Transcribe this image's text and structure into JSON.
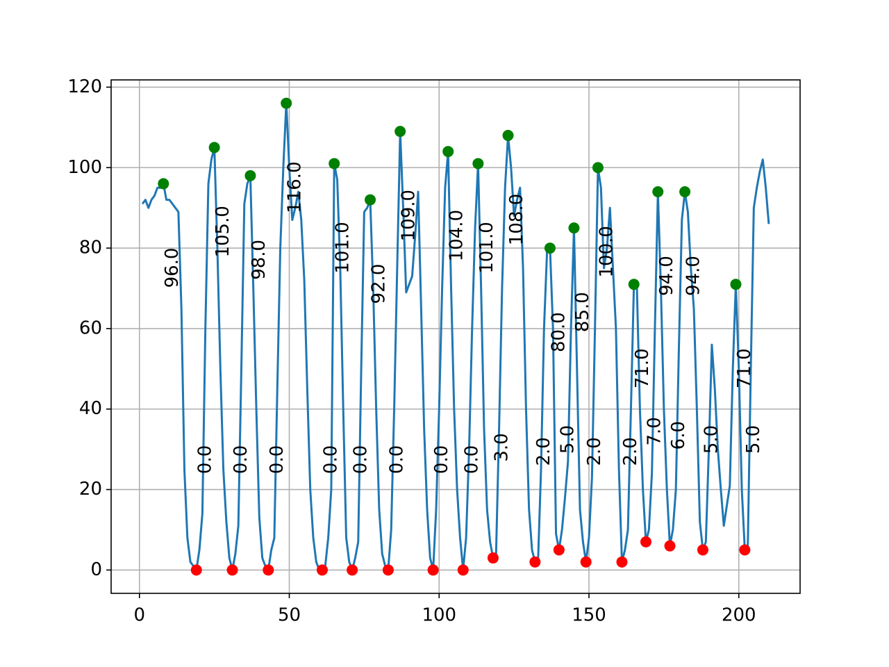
{
  "chart_data": {
    "type": "line",
    "xlim": [
      -9.45,
      220.45
    ],
    "ylim": [
      -5.8,
      121.8
    ],
    "xticks": [
      0,
      50,
      100,
      150,
      200
    ],
    "yticks": [
      0,
      20,
      40,
      60,
      80,
      100,
      120
    ],
    "grid": true,
    "series": [
      {
        "type": "line",
        "color": "#1f77b4",
        "x": [
          1,
          2,
          3,
          4,
          5,
          6,
          7,
          8,
          9,
          10,
          11,
          12,
          13,
          14,
          15,
          16,
          17,
          18,
          19,
          20,
          21,
          22,
          23,
          24,
          25,
          26,
          27,
          28,
          29,
          30,
          31,
          32,
          33,
          34,
          35,
          36,
          37,
          38,
          39,
          40,
          41,
          42,
          43,
          44,
          45,
          46,
          47,
          48,
          49,
          50,
          51,
          52,
          53,
          54,
          55,
          56,
          57,
          58,
          59,
          60,
          61,
          62,
          63,
          64,
          65,
          66,
          67,
          68,
          69,
          70,
          71,
          72,
          73,
          74,
          75,
          76,
          77,
          78,
          79,
          80,
          81,
          82,
          83,
          84,
          85,
          86,
          87,
          88,
          89,
          90,
          91,
          92,
          93,
          94,
          95,
          96,
          97,
          98,
          99,
          100,
          101,
          102,
          103,
          104,
          105,
          106,
          107,
          108,
          109,
          110,
          111,
          112,
          113,
          114,
          115,
          116,
          117,
          118,
          119,
          120,
          121,
          122,
          123,
          124,
          125,
          126,
          127,
          128,
          129,
          130,
          131,
          132,
          133,
          134,
          135,
          136,
          137,
          138,
          139,
          140,
          141,
          142,
          143,
          144,
          145,
          146,
          147,
          148,
          149,
          150,
          151,
          152,
          153,
          154,
          155,
          156,
          157,
          158,
          159,
          160,
          161,
          162,
          163,
          164,
          165,
          166,
          167,
          168,
          169,
          170,
          171,
          172,
          173,
          174,
          175,
          176,
          177,
          178,
          179,
          180,
          181,
          182,
          183,
          184,
          185,
          186,
          187,
          188,
          189,
          190,
          191,
          192,
          193,
          194,
          195,
          196,
          197,
          198,
          199,
          200,
          201,
          202,
          203,
          204,
          205,
          206,
          207,
          208,
          209,
          210
        ],
        "values": [
          91,
          92,
          90,
          92,
          93,
          95,
          95,
          96,
          92,
          92,
          91,
          90,
          89,
          65,
          25,
          8,
          2,
          1,
          0,
          5,
          14,
          60,
          96,
          102,
          105,
          80,
          50,
          25,
          12,
          3,
          0,
          4,
          11,
          50,
          91,
          96,
          98,
          70,
          40,
          13,
          3,
          1,
          0,
          5,
          8,
          45,
          80,
          100,
          116,
          100,
          87,
          90,
          94,
          87,
          72,
          45,
          20,
          8,
          2,
          0,
          0,
          1,
          8,
          20,
          101,
          97,
          75,
          40,
          8,
          2,
          0,
          3,
          7,
          50,
          89,
          90,
          92,
          70,
          40,
          15,
          4,
          1,
          0,
          10,
          40,
          75,
          109,
          90,
          69,
          71,
          73,
          83,
          94,
          65,
          35,
          15,
          3,
          0,
          15,
          40,
          70,
          95,
          104,
          70,
          40,
          20,
          8,
          0,
          8,
          30,
          60,
          85,
          101,
          70,
          35,
          15,
          7,
          3,
          4,
          35,
          70,
          95,
          108,
          100,
          88,
          92,
          95,
          75,
          40,
          15,
          5,
          2,
          2,
          25,
          60,
          79,
          80,
          60,
          9,
          5,
          10,
          18,
          27,
          60,
          85,
          50,
          15,
          7,
          2,
          8,
          23,
          60,
          100,
          95,
          75,
          80,
          90,
          75,
          60,
          25,
          2,
          5,
          10,
          40,
          71,
          70,
          40,
          20,
          7,
          10,
          24,
          60,
          94,
          70,
          40,
          20,
          6,
          10,
          20,
          55,
          87,
          94,
          89,
          75,
          65,
          40,
          12,
          5,
          7,
          30,
          56,
          45,
          30,
          20,
          11,
          16,
          21,
          50,
          71,
          50,
          20,
          5,
          6,
          50,
          90,
          95,
          99,
          102,
          95,
          86
        ]
      },
      {
        "type": "scatter",
        "color": "green",
        "label_side": "below",
        "x": [
          8,
          25,
          37,
          49,
          65,
          77,
          87,
          103,
          113,
          123,
          137,
          145,
          153,
          165,
          173,
          182,
          199
        ],
        "values": [
          96,
          105,
          98,
          116,
          101,
          92,
          109,
          104,
          101,
          108,
          80,
          85,
          100,
          71,
          94,
          94,
          71
        ],
        "value_labels": [
          "96.0",
          "105.0",
          "98.0",
          "116.0",
          "101.0",
          "92.0",
          "109.0",
          "104.0",
          "101.0",
          "108.0",
          "80.0",
          "85.0",
          "100.0",
          "71.0",
          "94.0",
          "94.0",
          "71.0"
        ]
      },
      {
        "type": "scatter",
        "color": "red",
        "label_side": "above",
        "x": [
          19,
          31,
          43,
          61,
          71,
          83,
          98,
          108,
          118,
          132,
          140,
          149,
          161,
          169,
          177,
          188,
          202
        ],
        "values": [
          0,
          0,
          0,
          0,
          0,
          0,
          0,
          0,
          3,
          2,
          5,
          2,
          2,
          7,
          6,
          5,
          5
        ],
        "value_labels": [
          "0.0",
          "0.0",
          "0.0",
          "0.0",
          "0.0",
          "0.0",
          "0.0",
          "0.0",
          "3.0",
          "2.0",
          "5.0",
          "2.0",
          "2.0",
          "7.0",
          "6.0",
          "5.0",
          "5.0"
        ]
      }
    ]
  }
}
